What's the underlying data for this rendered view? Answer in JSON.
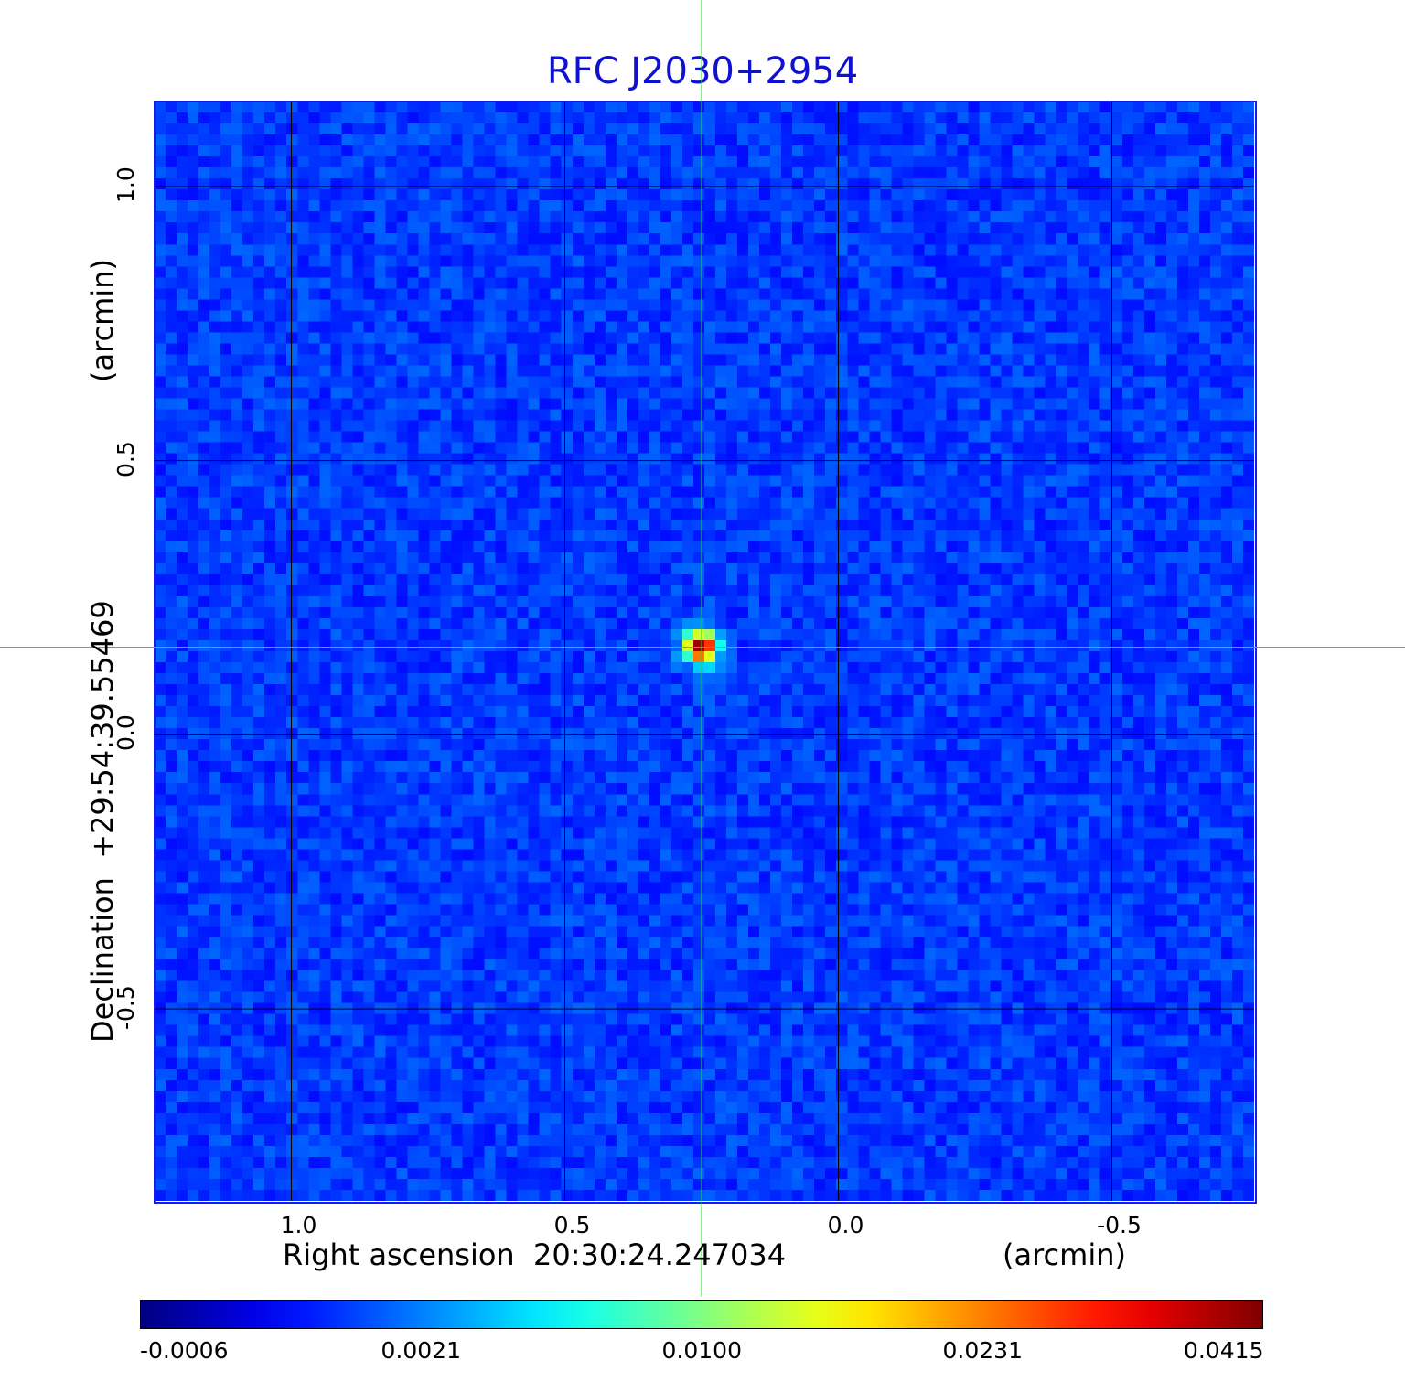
{
  "chart_data": {
    "type": "heatmap",
    "title": "RFC J2030+2954",
    "xlabel": "Right ascension  20:30:24.247034",
    "xunit": "(arcmin)",
    "ylabel": "Declination  +29:54:39.55469",
    "yunit": "(arcmin)",
    "x_ticks": [
      1.0,
      0.5,
      0.0,
      -0.5
    ],
    "x_tick_labels": [
      "1.0",
      "0.5",
      "0.0",
      "-0.5"
    ],
    "xlim": [
      1.25,
      -0.76
    ],
    "y_ticks": [
      1.0,
      0.5,
      0.0,
      -0.5
    ],
    "y_tick_labels": [
      "1.0",
      "0.5",
      "0.0",
      "-0.5"
    ],
    "ylim": [
      -0.85,
      1.155
    ],
    "grid": true,
    "crosshair": {
      "x": 0.25,
      "y": 0.16,
      "color": "#22dd22"
    },
    "source_peak": {
      "x": 0.25,
      "y": 0.16,
      "value": 0.0415
    },
    "colormap": "jet",
    "colorbar": {
      "tick_labels": [
        "-0.0006",
        "0.0021",
        "0.0100",
        "0.0231",
        "0.0415"
      ],
      "tick_values": [
        -0.0006,
        0.0021,
        0.01,
        0.0231,
        0.0415
      ],
      "scale": "nonlinear"
    },
    "colors": {
      "title": "#1010d0",
      "frame": "#1a1ae0",
      "crosshair": "#22dd22",
      "grid": "#000000"
    }
  }
}
